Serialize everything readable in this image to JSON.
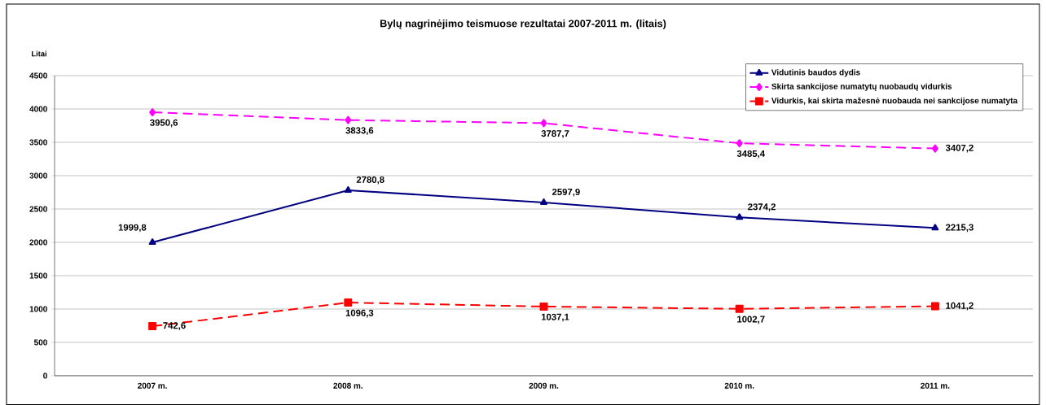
{
  "chart_data": {
    "type": "line",
    "title": "Bylų nagrinėjimo teismuose rezultatai 2007-2011 m. (litais)",
    "ylabel": "Litai",
    "categories": [
      "2007 m.",
      "2008 m.",
      "2009 m.",
      "2010 m.",
      "2011 m."
    ],
    "series": [
      {
        "name": "Vidutinis baudos dydis",
        "color": "#000080",
        "values": [
          1999.8,
          2780.8,
          2597.9,
          2374.2,
          2215.3
        ],
        "value_labels": [
          "1999,8",
          "2780,8",
          "2597,9",
          "2374,2",
          "2215,3"
        ],
        "marker": "triangle",
        "line_style": "solid"
      },
      {
        "name": "Skirta sankcijose numatytų nuobaudų vidurkis",
        "color": "#ff00ff",
        "values": [
          3950.6,
          3833.6,
          3787.7,
          3485.4,
          3407.2
        ],
        "value_labels": [
          "3950,6",
          "3833,6",
          "3787,7",
          "3485,4",
          "3407,2"
        ],
        "marker": "diamond",
        "line_style": "dashed"
      },
      {
        "name": "Vidurkis, kai skirta mažesnė nuobauda nei sankcijose numatyta",
        "color": "#ff0000",
        "values": [
          742.6,
          1096.3,
          1037.1,
          1002.7,
          1041.2
        ],
        "value_labels": [
          "742,6",
          "1096,3",
          "1037,1",
          "1002,7",
          "1041,2"
        ],
        "marker": "square",
        "line_style": "dashed"
      }
    ],
    "ylim": [
      0,
      4500
    ],
    "yticks": [
      0,
      500,
      1000,
      1500,
      2000,
      2500,
      3000,
      3500,
      4000,
      4500
    ],
    "grid": "y",
    "legend": "top right"
  }
}
